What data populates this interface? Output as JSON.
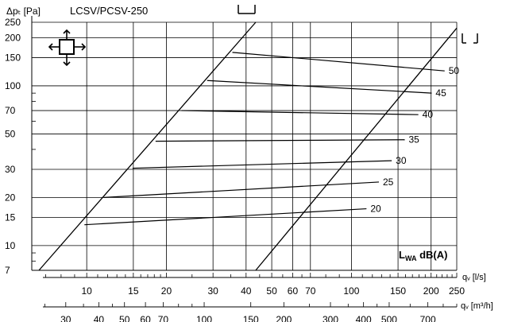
{
  "chart_data": {
    "type": "line",
    "title": "LCSV/PCSV-250",
    "ylabel": "Δpₜ [Pa]",
    "xlabel_ls": "qᵥ [l/s]",
    "xlabel_m3h": "qᵥ [m³/h]",
    "scale": "log-log",
    "grid": true,
    "xlim_ls": [
      6.2,
      250
    ],
    "ylim": [
      7,
      250
    ],
    "y_ticks": [
      7,
      10,
      15,
      20,
      30,
      50,
      70,
      100,
      150,
      200,
      250
    ],
    "y_tick_labels": [
      "7",
      "10",
      "15",
      "20",
      "30",
      "50",
      "70",
      "100",
      "150",
      "200",
      "250"
    ],
    "x_ticks_ls": [
      10,
      15,
      20,
      30,
      40,
      50,
      60,
      70,
      100,
      150,
      200,
      250
    ],
    "x_tick_labels_ls": [
      "10",
      "15",
      "20",
      "30",
      "40",
      "50",
      "60",
      "70",
      "100",
      "150",
      "200",
      "250"
    ],
    "x_ticks_m3h": [
      30,
      40,
      50,
      60,
      70,
      100,
      150,
      200,
      300,
      400,
      500,
      700
    ],
    "x_tick_labels_m3h": [
      "30",
      "40",
      "50",
      "60",
      "70",
      "100",
      "150",
      "200",
      "300",
      "400",
      "500",
      "700"
    ],
    "annotation": "L",
    "annotation_sub": "WA",
    "annotation_rest": " dB(A)",
    "boundary_lines": [
      {
        "name": "damper-closed",
        "x": [
          6.6,
          43.5
        ],
        "y": [
          7,
          250
        ]
      },
      {
        "name": "damper-open",
        "x": [
          43.5,
          250
        ],
        "y": [
          7,
          230
        ]
      }
    ],
    "sound_lines": [
      {
        "label": "20",
        "x": [
          9.8,
          114
        ],
        "y": [
          13.5,
          17
        ]
      },
      {
        "label": "25",
        "x": [
          11.6,
          127
        ],
        "y": [
          20,
          25
        ]
      },
      {
        "label": "30",
        "x": [
          14.9,
          142
        ],
        "y": [
          30.5,
          34
        ]
      },
      {
        "label": "35",
        "x": [
          18.2,
          159
        ],
        "y": [
          45,
          46
        ]
      },
      {
        "label": "40",
        "x": [
          22.8,
          179
        ],
        "y": [
          70,
          66
        ]
      },
      {
        "label": "45",
        "x": [
          28.5,
          201
        ],
        "y": [
          108,
          90
        ]
      },
      {
        "label": "50",
        "x": [
          35.5,
          225
        ],
        "y": [
          162,
          124
        ]
      }
    ]
  },
  "icons": {
    "flow_direction": "four-direction-arrows-icon",
    "damper_closed": "damper-closed-symbol-icon",
    "damper_open": "damper-open-symbol-icon"
  }
}
